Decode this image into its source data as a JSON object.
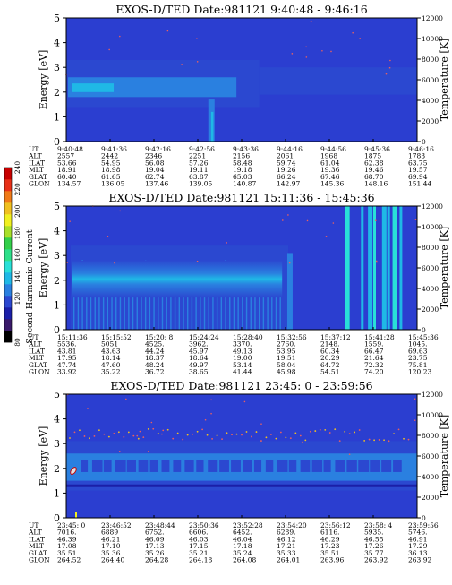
{
  "colorbar": {
    "label": "Second Harmonic Current",
    "ticks": [
      80,
      120,
      140,
      160,
      180,
      200,
      220,
      240
    ],
    "colors": [
      "#000000",
      "#3a1a6a",
      "#1b1fa8",
      "#2b48d0",
      "#2a80e0",
      "#1fb8e6",
      "#29e0d8",
      "#2ee08a",
      "#33d04a",
      "#a8e02a",
      "#f0f020",
      "#f0c020",
      "#f07a18",
      "#e83018",
      "#c80000"
    ]
  },
  "chart_data": [
    {
      "type": "heatmap",
      "title": "EXOS-D/TED   Date:981121  9:40:48 - 9:46:16",
      "ylabel": "Energy [eV]",
      "y2label": "Temperature [K]",
      "ylim": [
        0,
        5
      ],
      "y_ticks": [
        0,
        1,
        2,
        3,
        4,
        5
      ],
      "y2lim": [
        0,
        12000
      ],
      "y2_ticks": [
        0,
        2000,
        4000,
        6000,
        8000,
        10000,
        12000
      ],
      "table": {
        "row_labels": [
          "UT",
          "ALT",
          "ILAT",
          "MLT",
          "GLAT",
          "GLON"
        ],
        "columns": [
          [
            "9:40:48",
            "2557",
            "53.66",
            "18.91",
            "60.40",
            "134.57"
          ],
          [
            "9:41:36",
            "2442",
            "54.95",
            "18.98",
            "61.65",
            "136.05"
          ],
          [
            "9:42:16",
            "2346",
            "56.08",
            "19.04",
            "62.74",
            "137.46"
          ],
          [
            "9:42:56",
            "2251",
            "57.26",
            "19.11",
            "63.87",
            "139.05"
          ],
          [
            "9:43:36",
            "2156",
            "58.48",
            "19.18",
            "65.03",
            "140.87"
          ],
          [
            "9:44:16",
            "2061",
            "59.74",
            "19.26",
            "66.24",
            "142.97"
          ],
          [
            "9:44:56",
            "1968",
            "61.04",
            "19.36",
            "67.46",
            "145.36"
          ],
          [
            "9:45:36",
            "1875",
            "62.38",
            "19.46",
            "68.70",
            "148.16"
          ],
          [
            "9:46:16",
            "1783",
            "63.75",
            "19.57",
            "69.94",
            "151.44"
          ]
        ]
      }
    },
    {
      "type": "heatmap",
      "title": "EXOS-D/TED   Date:981121  15:11:36 - 15:45:36",
      "ylabel": "Energy [eV]",
      "y2label": "Temperature [K]",
      "ylim": [
        0,
        5
      ],
      "y_ticks": [
        0,
        1,
        2,
        3,
        4,
        5
      ],
      "y2lim": [
        0,
        12000
      ],
      "y2_ticks": [
        0,
        2000,
        4000,
        6000,
        8000,
        10000,
        12000
      ],
      "table": {
        "row_labels": [
          "UT",
          "ALT",
          "ILAT",
          "MLT",
          "GLAT",
          "GLON"
        ],
        "columns": [
          [
            "15:11:36",
            "5536.",
            "43.81",
            "17.95",
            "47.74",
            "33.92"
          ],
          [
            "15:15:52",
            "5051",
            "43.63",
            "18.14",
            "47.60",
            "35.22"
          ],
          [
            "15:20: 8",
            "4525.",
            "44.24",
            "18.37",
            "48.24",
            "36.72"
          ],
          [
            "15:24:24",
            "3962.",
            "45.97",
            "18.64",
            "49.97",
            "38.65"
          ],
          [
            "15:28:40",
            "3370.",
            "49.13",
            "19.00",
            "53.14",
            "41.44"
          ],
          [
            "15:32:56",
            "2760.",
            "53.95",
            "19.51",
            "58.04",
            "45.98"
          ],
          [
            "15:37:12",
            "2148.",
            "60.34",
            "20.29",
            "64.72",
            "54.51"
          ],
          [
            "15:41:28",
            "1559.",
            "66.47",
            "21.64",
            "72.32",
            "74.20"
          ],
          [
            "15:45:36",
            "1045.",
            "69.63",
            "23.75",
            "75.81",
            "120.23"
          ]
        ]
      }
    },
    {
      "type": "heatmap",
      "title": "EXOS-D/TED   Date:981121  23:45: 0 - 23:59:56",
      "ylabel": "Energy [eV]",
      "y2label": "Temperature [K]",
      "ylim": [
        0,
        5
      ],
      "y_ticks": [
        0,
        1,
        2,
        3,
        4,
        5
      ],
      "y2lim": [
        0,
        12000
      ],
      "y2_ticks": [
        0,
        2000,
        4000,
        6000,
        8000,
        10000,
        12000
      ],
      "table": {
        "row_labels": [
          "UT",
          "ALT",
          "ILAT",
          "MLT",
          "GLAT",
          "GLON"
        ],
        "columns": [
          [
            "23:45: 0",
            "7016.",
            "46.39",
            "17.08",
            "35.51",
            "264.52"
          ],
          [
            "23:46:52",
            "6889",
            "46.21",
            "17.10",
            "35.36",
            "264.40"
          ],
          [
            "23:48:44",
            "6752.",
            "46.09",
            "17.13",
            "35.26",
            "264.28"
          ],
          [
            "23:50:36",
            "6606.",
            "46.03",
            "17.15",
            "35.21",
            "264.18"
          ],
          [
            "23:52:28",
            "6452.",
            "46.04",
            "17.18",
            "35.24",
            "264.08"
          ],
          [
            "23:54:20",
            "6289.",
            "46.12",
            "17.21",
            "35.33",
            "264.01"
          ],
          [
            "23:56:12",
            "6116.",
            "46.29",
            "17.23",
            "35.51",
            "263.96"
          ],
          [
            "23:58: 4",
            "5935.",
            "46.55",
            "17.26",
            "35.77",
            "263.92"
          ],
          [
            "23:59:56",
            "5746.",
            "46.91",
            "17.29",
            "36.13",
            "263.92"
          ]
        ]
      }
    }
  ]
}
